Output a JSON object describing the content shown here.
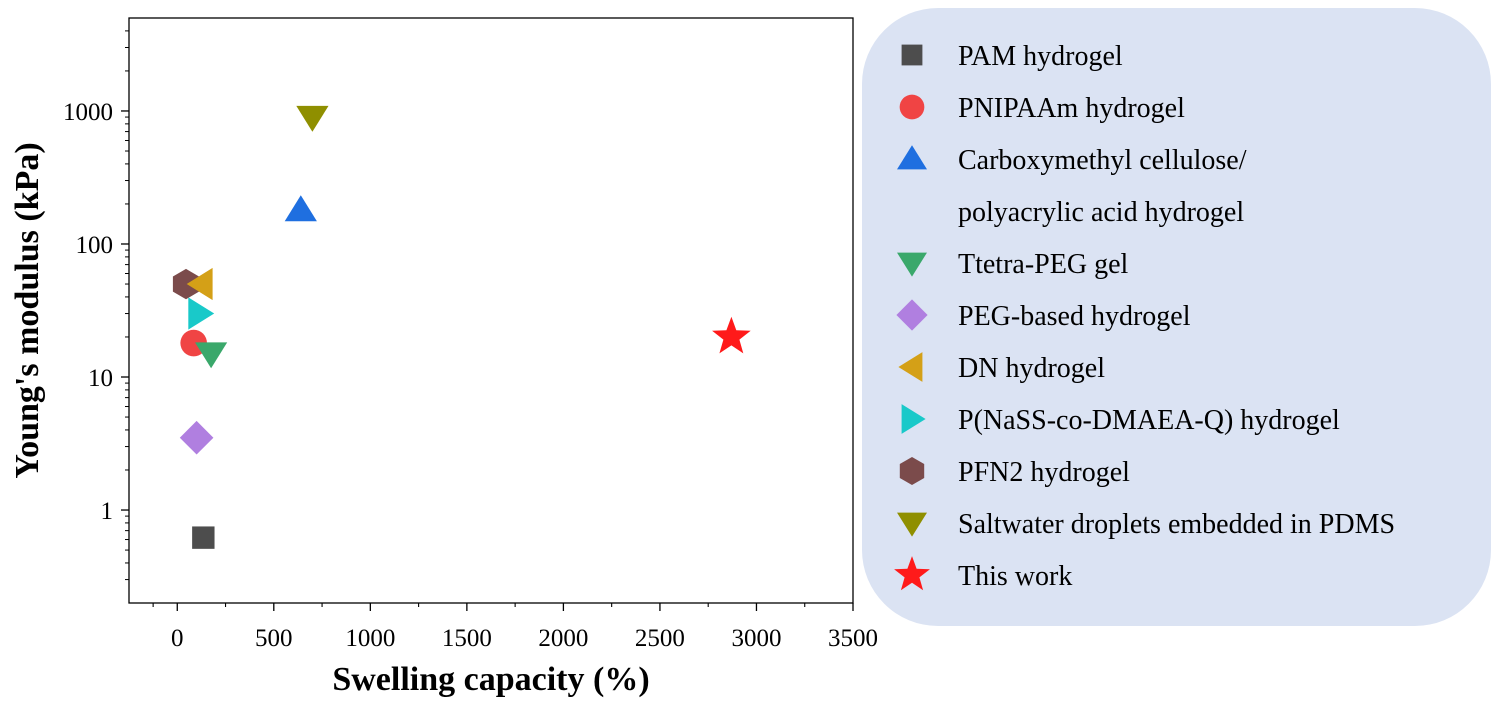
{
  "chart_data": {
    "type": "scatter",
    "xlabel": "Swelling capacity (%)",
    "ylabel": "Young's modulus (kPa)",
    "xlim": [
      -250,
      3500
    ],
    "ylim": [
      0.2,
      5000
    ],
    "yscale": "log",
    "x_ticks": [
      0,
      500,
      1000,
      1500,
      2000,
      2500,
      3000,
      3500
    ],
    "y_ticks": [
      1,
      10,
      100,
      1000
    ],
    "grid": false,
    "legend_position": "right",
    "series": [
      {
        "name": "PAM hydrogel",
        "marker": "square",
        "color": "#4d4d4d",
        "points": [
          {
            "x": 135,
            "y": 0.62
          }
        ]
      },
      {
        "name": "PNIPAAm hydrogel",
        "marker": "circle",
        "color": "#f04444",
        "points": [
          {
            "x": 85,
            "y": 18
          }
        ]
      },
      {
        "name": "Carboxymethyl cellulose/ polyacrylic acid hydrogel",
        "name_lines": [
          "Carboxymethyl cellulose/",
          "polyacrylic acid hydrogel"
        ],
        "marker": "triangle-up",
        "color": "#1f6fe0",
        "points": [
          {
            "x": 640,
            "y": 180
          }
        ]
      },
      {
        "name": "Ttetra-PEG gel",
        "marker": "triangle-down",
        "color": "#3aa86b",
        "points": [
          {
            "x": 175,
            "y": 15
          }
        ]
      },
      {
        "name": "PEG-based hydrogel",
        "marker": "diamond",
        "color": "#b07fe0",
        "points": [
          {
            "x": 100,
            "y": 3.5
          }
        ]
      },
      {
        "name": "DN hydrogel",
        "marker": "triangle-left",
        "color": "#d4a017",
        "points": [
          {
            "x": 125,
            "y": 50
          }
        ]
      },
      {
        "name": "P(NaSS-co-DMAEA-Q) hydrogel",
        "marker": "triangle-right",
        "color": "#19c9c9",
        "points": [
          {
            "x": 115,
            "y": 30
          }
        ]
      },
      {
        "name": "PFN2 hydrogel",
        "marker": "hexagon",
        "color": "#7b4b4b",
        "points": [
          {
            "x": 45,
            "y": 50
          }
        ]
      },
      {
        "name": "Saltwater droplets embedded in PDMS",
        "marker": "triangle-down",
        "color": "#8f8f00",
        "points": [
          {
            "x": 700,
            "y": 900
          }
        ]
      },
      {
        "name": "This work",
        "marker": "star",
        "color": "#ff1a1a",
        "points": [
          {
            "x": 2870,
            "y": 20
          }
        ]
      }
    ]
  },
  "legend": {
    "background": "#dbe3f3"
  }
}
